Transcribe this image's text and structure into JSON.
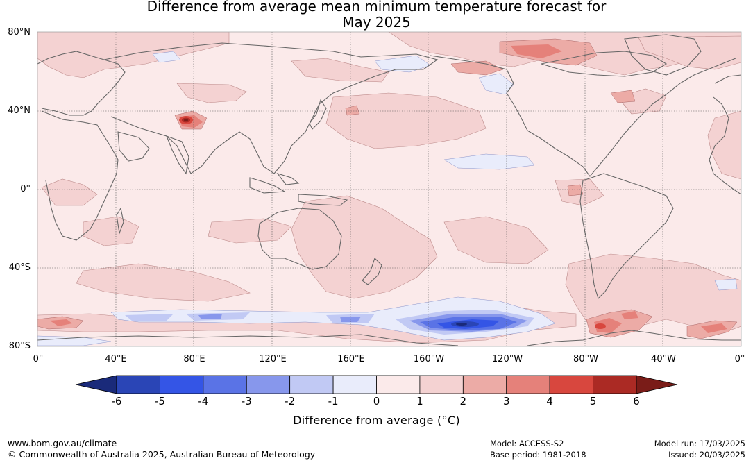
{
  "title": {
    "line1": "Difference from average mean minimum temperature forecast for",
    "line2": "May 2025"
  },
  "map": {
    "lat_labels": [
      "80°N",
      "40°N",
      "0°",
      "40°S",
      "80°S"
    ],
    "lon_labels": [
      "0°",
      "40°E",
      "80°E",
      "120°E",
      "160°E",
      "160°W",
      "120°W",
      "80°W",
      "40°W",
      "0°"
    ]
  },
  "colorbar": {
    "ticks": [
      "-6",
      "-5",
      "-4",
      "-3",
      "-2",
      "-1",
      "0",
      "1",
      "2",
      "3",
      "4",
      "5",
      "6"
    ],
    "colors": [
      "#1a2a7a",
      "#2a45b6",
      "#3455e6",
      "#5a73e6",
      "#8797ec",
      "#c1c9f4",
      "#e9ecfb",
      "#fbeaea",
      "#f4d2d2",
      "#ecaba6",
      "#e5817a",
      "#d8473e",
      "#ab2a24",
      "#7a1c18"
    ],
    "label": "Difference from average (°C)"
  },
  "footer": {
    "website": "www.bom.gov.au/climate",
    "copyright": "© Commonwealth of Australia 2025, Australian Bureau of Meteorology",
    "model": "Model: ACCESS-S2",
    "base_period": "Base period: 1981-2018",
    "model_run": "Model run: 17/03/2025",
    "issued": "Issued: 20/03/2025"
  }
}
